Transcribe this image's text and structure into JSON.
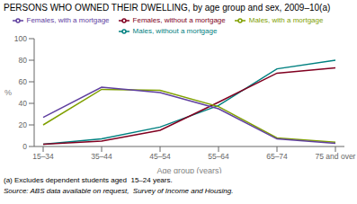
{
  "chart_data": {
    "type": "line",
    "title": "PERSONS WHO OWNED THEIR DWELLING, by age group and sex, 2009–10(a)",
    "xlabel": "Age group (years)",
    "ylabel": "%",
    "annotations": [
      "(a) Excludes dependent students aged  15–24 years.",
      "Source: ABS data available on request,  Survey of Income and Housing."
    ],
    "categories": [
      "15–34",
      "35–44",
      "45–54",
      "55–64",
      "65–74",
      "75 and over"
    ],
    "series": [
      {
        "name": "Males, without a mortgage",
        "color": "#008080",
        "values": [
          2,
          7,
          18,
          38,
          72,
          80
        ]
      },
      {
        "name": "Females, without a mortgage",
        "color": "#800020",
        "values": [
          2,
          5,
          15,
          41,
          68,
          73
        ]
      },
      {
        "name": "Males, with a mortgage",
        "color": "#80A000",
        "values": [
          20,
          53,
          52,
          37,
          8,
          4
        ]
      },
      {
        "name": "Females, with a mortgage",
        "color": "#6040A0",
        "values": [
          27,
          55,
          50,
          35,
          7,
          3
        ]
      }
    ],
    "ylim": [
      0,
      100
    ],
    "yticks": [
      0,
      20,
      40,
      60,
      80,
      100
    ],
    "grid": false,
    "legend": "top"
  }
}
